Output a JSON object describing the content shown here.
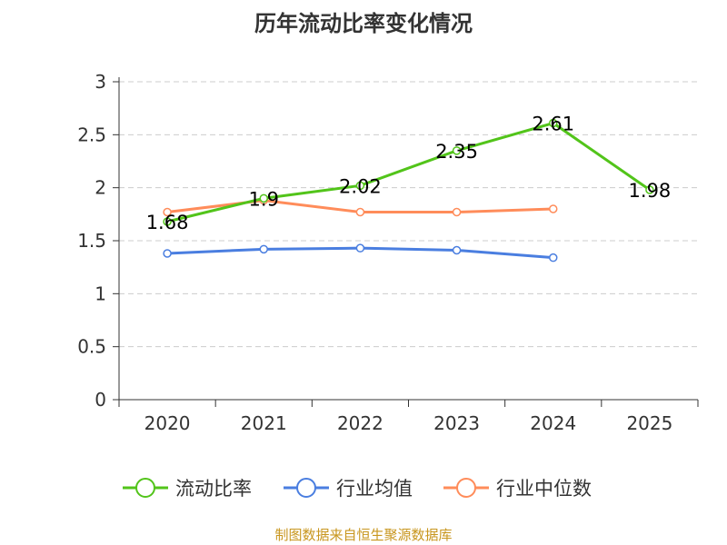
{
  "chart_data": {
    "type": "line",
    "title": "历年流动比率变化情况",
    "categories": [
      "2020",
      "2021",
      "2022",
      "2023",
      "2024",
      "2025"
    ],
    "ylim": [
      0,
      3
    ],
    "yticks": [
      "0",
      "0.5",
      "1",
      "1.5",
      "2",
      "2.5",
      "3"
    ],
    "grid": true,
    "legend_position": "bottom",
    "series": [
      {
        "name": "流动比率",
        "color": "#52c41a",
        "values": [
          1.68,
          1.9,
          2.02,
          2.35,
          2.61,
          1.98
        ],
        "labels": [
          "1.68",
          "1.9",
          "2.02",
          "2.35",
          "2.61",
          "1.98"
        ]
      },
      {
        "name": "行业均值",
        "color": "#4a7ee0",
        "values": [
          1.38,
          1.42,
          1.43,
          1.41,
          1.34,
          null
        ]
      },
      {
        "name": "行业中位数",
        "color": "#ff8c5a",
        "values": [
          1.77,
          1.88,
          1.77,
          1.77,
          1.8,
          null
        ]
      }
    ]
  },
  "source": "制图数据来自恒生聚源数据库"
}
